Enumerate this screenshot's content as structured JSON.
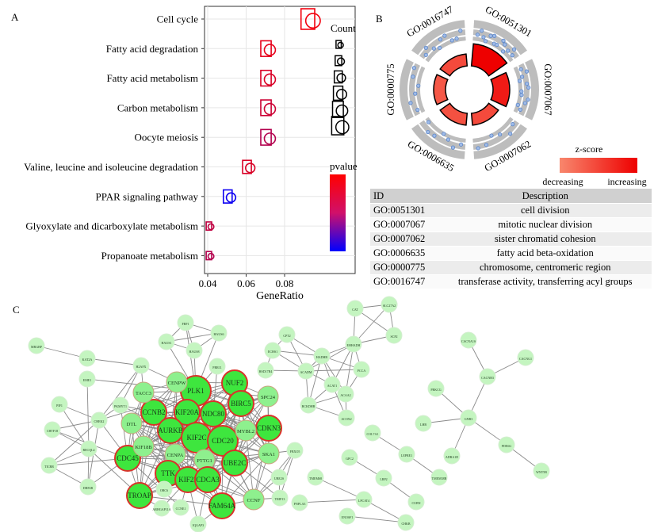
{
  "panels": {
    "a": "A",
    "b": "B",
    "c": "C"
  },
  "chart_data": [
    {
      "type": "scatter",
      "panel": "A",
      "categories": [
        "Cell cycle",
        "Fatty acid degradation",
        "Fatty acid metabolism",
        "Carbon metabolism",
        "Oocyte meiosis",
        "Valine, leucine and isoleucine degradation",
        "PPAR signaling pathway",
        "Glyoxylate and dicarboxylate metabolism",
        "Propanoate metabolism"
      ],
      "x": [
        0.093,
        0.071,
        0.071,
        0.071,
        0.071,
        0.061,
        0.051,
        0.041,
        0.041
      ],
      "count_size_rank": [
        6,
        4,
        4,
        4,
        4,
        3,
        3,
        1,
        1
      ],
      "pvalue_color_fraction": [
        0.95,
        0.9,
        0.85,
        0.8,
        0.7,
        0.85,
        0.05,
        0.75,
        0.7
      ],
      "xlabel": "GeneRatio",
      "xticks": [
        "0.04",
        "0.06",
        "0.08"
      ],
      "xlim": [
        0.04,
        0.096
      ],
      "grid": true,
      "legend": {
        "count_title": "Count",
        "pvalue_title": "pvalue",
        "placement": "right"
      },
      "colors": {
        "high": "#ff0000",
        "low": "#0000ff"
      }
    },
    {
      "type": "circle",
      "panel": "B",
      "terms": [
        "GO:0051301",
        "GO:0007067",
        "GO:0007062",
        "GO:0006635",
        "GO:0000775",
        "GO:0016747"
      ],
      "inner_color_fraction": [
        1.0,
        0.8,
        0.45,
        0.4,
        0.35,
        0.45
      ],
      "genes_per_term": [
        14,
        12,
        6,
        7,
        6,
        9
      ],
      "legend_title": "z-score",
      "legend_low": "decreasing",
      "legend_high": "increasing",
      "colors": {
        "low": "#f8876d",
        "high": "#ee0000",
        "ring": "#bdbdbd",
        "gene": "#5b86c9"
      }
    }
  ],
  "table": {
    "headers": [
      "ID",
      "Description"
    ],
    "rows": [
      [
        "GO:0051301",
        "cell division"
      ],
      [
        "GO:0007067",
        "mitotic nuclear division"
      ],
      [
        "GO:0007062",
        "sister chromatid cohesion"
      ],
      [
        "GO:0006635",
        "fatty acid beta-oxidation"
      ],
      [
        "GO:0000775",
        "chromosome, centromeric region"
      ],
      [
        "GO:0016747",
        "transferase activity, transferring acyl groups"
      ]
    ]
  },
  "network": {
    "hubs": [
      "PLK1",
      "NUF2",
      "BIRC5",
      "CCNB2",
      "KIF20A",
      "NDC80",
      "AURKB",
      "KIF2C",
      "CDC20",
      "CDKN3",
      "CDC45",
      "TTK",
      "KIF23",
      "CDCA3",
      "UBE2C",
      "TROAP",
      "FAM64A"
    ],
    "dense_cluster": [
      "PLK1",
      "NUF2",
      "BIRC5",
      "CCNB2",
      "KIF20A",
      "NDC80",
      "AURKB",
      "KIF2C",
      "CDC20",
      "CDKN3",
      "SPC24",
      "MYBL2",
      "SKA1",
      "CENPA",
      "PTTG1",
      "UBE2C",
      "CDC45",
      "KIF18B",
      "DTL",
      "TACC3",
      "CENPW",
      "TTK",
      "KIF23",
      "CDCA3",
      "FAM64A",
      "TROAP",
      "CCNF"
    ],
    "edges": [
      [
        "HAUS1",
        "FBF1"
      ],
      [
        "HAUS1",
        "HAUS6"
      ],
      [
        "HAUS1",
        "HAUS8"
      ],
      [
        "FBF1",
        "HAUS6"
      ],
      [
        "FBF1",
        "HAUS8"
      ],
      [
        "HAUS6",
        "HAUS8"
      ],
      [
        "HAUS8",
        "PLK1"
      ],
      [
        "HAUS1",
        "PLK1"
      ],
      [
        "HAUS6",
        "PLK1"
      ],
      [
        "FBF1",
        "PLK1"
      ],
      [
        "PRR11",
        "PLK1"
      ],
      [
        "PRR11",
        "NDC80"
      ],
      [
        "MRGBP",
        "KAT2A"
      ],
      [
        "KAT2A",
        "H2AFX"
      ],
      [
        "H2AFX",
        "TACC3"
      ],
      [
        "H2AFX",
        "CENPW"
      ],
      [
        "H2AFX",
        "CHEK2"
      ],
      [
        "H2AFX",
        "PKMYT1"
      ],
      [
        "EME1",
        "PLK1"
      ],
      [
        "EME1",
        "RECQL4"
      ],
      [
        "PIF1",
        "CHEK2"
      ],
      [
        "PIF1",
        "RECQL4"
      ],
      [
        "CHTF18",
        "CHEK2"
      ],
      [
        "CHTF18",
        "RECQL4"
      ],
      [
        "CHTF18",
        "CDC45"
      ],
      [
        "CHEK2",
        "PKMYT1"
      ],
      [
        "CHEK2",
        "CDC45"
      ],
      [
        "CHEK2",
        "TICRR"
      ],
      [
        "CHEK2",
        "DBF4B"
      ],
      [
        "CHEK2",
        "PLK1"
      ],
      [
        "RECQL4",
        "TICRR"
      ],
      [
        "RECQL4",
        "DBF4B"
      ],
      [
        "RECQL4",
        "TROAP"
      ],
      [
        "TICRR",
        "CDC45"
      ],
      [
        "TICRR",
        "DBF4B"
      ],
      [
        "DBF4B",
        "CDC45"
      ],
      [
        "PKMYT1",
        "CCNB2"
      ],
      [
        "PKMYT1",
        "CDC45"
      ],
      [
        "PKMYT1",
        "AURKB"
      ],
      [
        "ORC6",
        "TROAP"
      ],
      [
        "ORC6",
        "KIF23"
      ],
      [
        "ARHGAP11A",
        "KIF23"
      ],
      [
        "ARHGAP11A",
        "TROAP"
      ],
      [
        "CCNE1",
        "KIF23"
      ],
      [
        "CCNE1",
        "CDC45"
      ],
      [
        "IQGAP3",
        "KIF23"
      ],
      [
        "IQGAP3",
        "CDCA3"
      ],
      [
        "IQGAP3",
        "FAM64A"
      ],
      [
        "FBXO5",
        "SKA1"
      ],
      [
        "FBXO5",
        "UBE2S"
      ],
      [
        "FBXO5",
        "CCNF"
      ],
      [
        "FBXO5",
        "TRIP13"
      ],
      [
        "UBE2S",
        "CCNF"
      ],
      [
        "UBE2S",
        "TRIP13"
      ],
      [
        "TRIP13",
        "CCNF"
      ],
      [
        "UBE2S",
        "CDC20"
      ],
      [
        "TRIP13",
        "UBE2C"
      ],
      [
        "CCNF",
        "UBE2C"
      ],
      [
        "SPC24",
        "SKA1"
      ],
      [
        "CAT",
        "SLC27A2"
      ],
      [
        "CAT",
        "SCP2"
      ],
      [
        "CAT",
        "EHHADH"
      ],
      [
        "SLC27A2",
        "SCP2"
      ],
      [
        "SLC27A2",
        "EHHADH"
      ],
      [
        "SCP2",
        "EHHADH"
      ],
      [
        "EHHADH",
        "HADHB"
      ],
      [
        "EHHADH",
        "ACADM"
      ],
      [
        "EHHADH",
        "PCCA"
      ],
      [
        "EHHADH",
        "ACAT1"
      ],
      [
        "EHHADH",
        "ACAA2"
      ],
      [
        "CPT2",
        "HADHB"
      ],
      [
        "CPT2",
        "ACADM"
      ],
      [
        "CPT2",
        "ECHS1"
      ],
      [
        "ECHS1",
        "HADHB"
      ],
      [
        "ECHS1",
        "ACADM"
      ],
      [
        "ECHS1",
        "HSD17B4"
      ],
      [
        "HSD17B4",
        "ACADM"
      ],
      [
        "HADHB",
        "ACADM"
      ],
      [
        "HADHB",
        "PCCA"
      ],
      [
        "HADHB",
        "ACAT1"
      ],
      [
        "HADHB",
        "ACAA2"
      ],
      [
        "HADHB",
        "BCKDHB"
      ],
      [
        "ACADM",
        "PCCA"
      ],
      [
        "ACADM",
        "ACAT1"
      ],
      [
        "ACADM",
        "BCKDHB"
      ],
      [
        "ACAT1",
        "ACAA2"
      ],
      [
        "ACAT1",
        "BCKDHB"
      ],
      [
        "ACAT1",
        "ACOX2"
      ],
      [
        "ACAA2",
        "BCKDHB"
      ],
      [
        "ACAA2",
        "ACOX2"
      ],
      [
        "ACAA2",
        "PCCA"
      ],
      [
        "BCKDHB",
        "ACOX2"
      ],
      [
        "CACNG1",
        "CACNB3"
      ],
      [
        "CACNA1S",
        "CACNB3"
      ],
      [
        "CACNB3",
        "GNB3"
      ],
      [
        "PRKCG",
        "GNB3"
      ],
      [
        "LHB",
        "GNB3"
      ],
      [
        "ADRA1D",
        "GNB3"
      ],
      [
        "GNB3",
        "PDE6G"
      ],
      [
        "PDE6G",
        "WNT5B"
      ],
      [
        "COL7A1",
        "LEPRE1"
      ],
      [
        "LEPRE1",
        "TMEM38B"
      ],
      [
        "GPC2",
        "LRP2"
      ],
      [
        "LRP2",
        "CUBN"
      ],
      [
        "TMEM68",
        "LPCAT4"
      ],
      [
        "PNPLA3",
        "LPCAT4"
      ],
      [
        "LPCAT4",
        "CHKB"
      ],
      [
        "ENOSF1",
        "CHKB"
      ]
    ]
  }
}
